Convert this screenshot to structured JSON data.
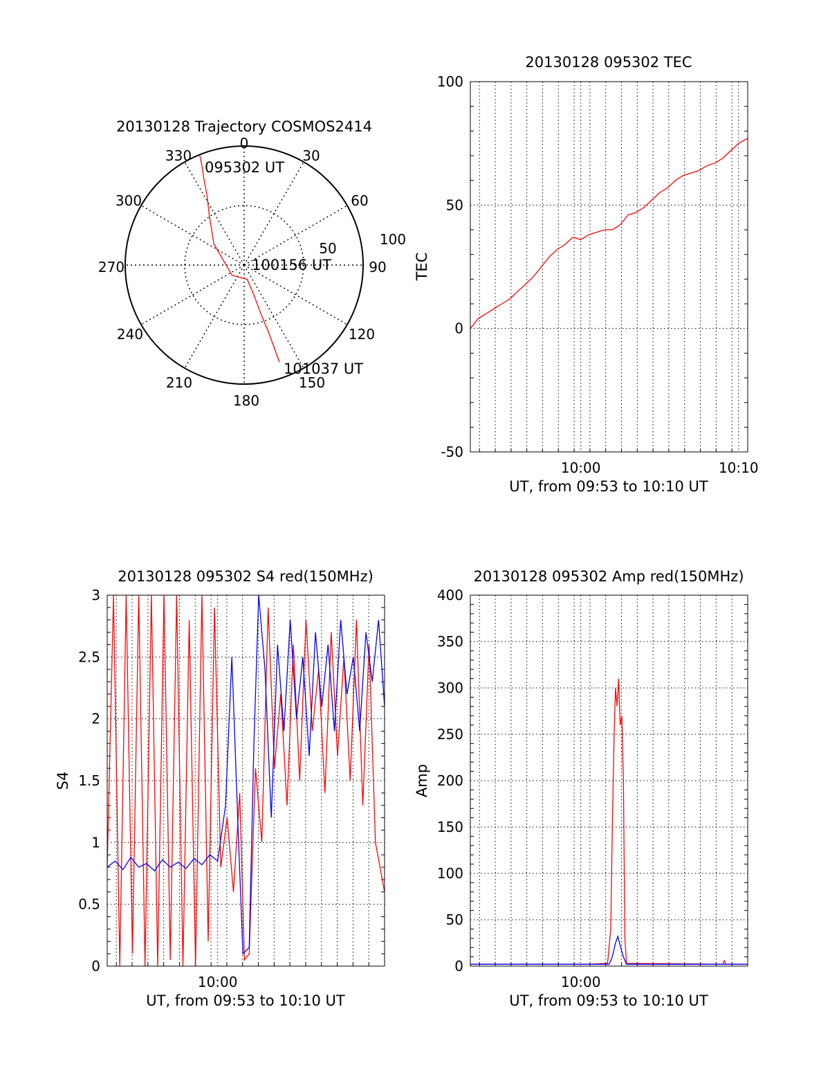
{
  "chart_data": [
    {
      "type": "polar",
      "title": "20130128 Trajectory COSMOS2414",
      "angle_labels": [
        "0",
        "30",
        "60",
        "90",
        "120",
        "150",
        "180",
        "210",
        "240",
        "270",
        "300",
        "330"
      ],
      "radial_labels": [
        "50",
        "100"
      ],
      "annotations": {
        "start": "095302 UT",
        "mid": "100156 UT",
        "end": "101037 UT"
      },
      "trajectory": [
        {
          "az": 338,
          "el": 0
        },
        {
          "az": 337,
          "el": 8
        },
        {
          "az": 335,
          "el": 18
        },
        {
          "az": 332,
          "el": 30
        },
        {
          "az": 325,
          "el": 44
        },
        {
          "az": 305,
          "el": 62
        },
        {
          "az": 230,
          "el": 78
        },
        {
          "az": 168,
          "el": 79
        },
        {
          "az": 162,
          "el": 66
        },
        {
          "az": 161,
          "el": 50
        },
        {
          "az": 160,
          "el": 36
        },
        {
          "az": 160,
          "el": 24
        },
        {
          "az": 160,
          "el": 12
        }
      ],
      "series_color": "#ff0000"
    },
    {
      "type": "line",
      "title": "20130128 095302 TEC",
      "xlabel": "UT, from 09:53 to 10:10 UT",
      "ylabel": "TEC",
      "xlim": [
        0,
        17.58
      ],
      "ylim": [
        -50,
        100
      ],
      "x_ticks": [
        {
          "at": 7,
          "label": "10:00"
        },
        {
          "at": 17,
          "label": "10:10"
        }
      ],
      "y_ticks": [
        "-50",
        "0",
        "50",
        "100"
      ],
      "grid": true,
      "series": [
        {
          "color": "#ff0000",
          "points": [
            [
              0,
              0
            ],
            [
              0.5,
              4
            ],
            [
              1,
              6
            ],
            [
              1.5,
              8
            ],
            [
              2,
              10
            ],
            [
              2.5,
              12
            ],
            [
              3,
              15
            ],
            [
              3.5,
              18
            ],
            [
              4,
              21
            ],
            [
              4.5,
              25
            ],
            [
              5,
              29
            ],
            [
              5.5,
              32
            ],
            [
              6,
              34
            ],
            [
              6.5,
              37
            ],
            [
              7,
              36
            ],
            [
              7.5,
              38
            ],
            [
              8,
              39
            ],
            [
              8.5,
              40
            ],
            [
              9,
              40
            ],
            [
              9.5,
              42
            ],
            [
              10,
              46
            ],
            [
              10.5,
              47
            ],
            [
              11,
              49
            ],
            [
              11.5,
              52
            ],
            [
              12,
              55
            ],
            [
              12.5,
              57
            ],
            [
              13,
              60
            ],
            [
              13.5,
              62
            ],
            [
              14,
              63
            ],
            [
              14.5,
              64
            ],
            [
              15,
              66
            ],
            [
              15.5,
              67
            ],
            [
              16,
              69
            ],
            [
              16.5,
              72
            ],
            [
              17,
              75
            ],
            [
              17.58,
              77
            ]
          ]
        }
      ]
    },
    {
      "type": "line",
      "title": "20130128 095302 S4 red(150MHz)",
      "xlabel": "UT, from 09:53 to 10:10 UT",
      "ylabel": "S4",
      "xlim": [
        0,
        17.58
      ],
      "ylim": [
        0,
        3
      ],
      "x_ticks": [
        {
          "at": 7,
          "label": "10:00"
        }
      ],
      "y_ticks": [
        "0",
        "0.5",
        "1",
        "1.5",
        "2",
        "2.5",
        "3"
      ],
      "grid": true,
      "series": [
        {
          "color": "#ff0000",
          "points": [
            [
              0,
              0.8
            ],
            [
              0.4,
              3
            ],
            [
              0.8,
              0
            ],
            [
              1.2,
              3
            ],
            [
              1.6,
              0.1
            ],
            [
              2,
              3
            ],
            [
              2.4,
              0
            ],
            [
              2.8,
              3
            ],
            [
              3.2,
              0
            ],
            [
              3.6,
              3
            ],
            [
              4,
              0.05
            ],
            [
              4.4,
              3
            ],
            [
              4.8,
              0
            ],
            [
              5.2,
              2.8
            ],
            [
              5.6,
              0
            ],
            [
              6,
              3
            ],
            [
              6.4,
              0.2
            ],
            [
              6.8,
              2.9
            ],
            [
              7.2,
              0.8
            ],
            [
              7.6,
              1.2
            ],
            [
              8,
              0.6
            ],
            [
              8.4,
              1.4
            ],
            [
              8.7,
              0.05
            ],
            [
              9,
              0.1
            ],
            [
              9.4,
              1.6
            ],
            [
              9.8,
              1.0
            ],
            [
              10.2,
              2.9
            ],
            [
              10.6,
              1.6
            ],
            [
              11,
              2.2
            ],
            [
              11.4,
              1.3
            ],
            [
              11.8,
              2.6
            ],
            [
              12.2,
              1.5
            ],
            [
              12.6,
              2.8
            ],
            [
              13,
              1.9
            ],
            [
              13.4,
              2.4
            ],
            [
              13.8,
              1.4
            ],
            [
              14.2,
              2.7
            ],
            [
              14.6,
              1.7
            ],
            [
              15,
              2.5
            ],
            [
              15.4,
              1.5
            ],
            [
              15.8,
              2.8
            ],
            [
              16.2,
              1.3
            ],
            [
              16.6,
              2.6
            ],
            [
              17,
              1.0
            ],
            [
              17.58,
              0.6
            ]
          ]
        },
        {
          "color": "#0000ff",
          "points": [
            [
              0,
              0.8
            ],
            [
              0.5,
              0.85
            ],
            [
              1,
              0.78
            ],
            [
              1.5,
              0.88
            ],
            [
              2,
              0.8
            ],
            [
              2.5,
              0.83
            ],
            [
              3,
              0.77
            ],
            [
              3.5,
              0.86
            ],
            [
              4,
              0.8
            ],
            [
              4.5,
              0.84
            ],
            [
              5,
              0.79
            ],
            [
              5.5,
              0.87
            ],
            [
              6,
              0.82
            ],
            [
              6.5,
              0.9
            ],
            [
              7,
              0.85
            ],
            [
              7.5,
              1.3
            ],
            [
              7.9,
              2.5
            ],
            [
              8.3,
              1.1
            ],
            [
              8.6,
              0.1
            ],
            [
              9,
              0.15
            ],
            [
              9.3,
              1.8
            ],
            [
              9.6,
              3
            ],
            [
              10,
              2.4
            ],
            [
              10.4,
              1.2
            ],
            [
              10.8,
              2.6
            ],
            [
              11.2,
              1.9
            ],
            [
              11.6,
              2.8
            ],
            [
              12,
              2.0
            ],
            [
              12.4,
              2.5
            ],
            [
              12.8,
              1.7
            ],
            [
              13.2,
              2.7
            ],
            [
              13.6,
              2.1
            ],
            [
              14,
              2.6
            ],
            [
              14.4,
              1.9
            ],
            [
              14.8,
              2.8
            ],
            [
              15.2,
              2.2
            ],
            [
              15.6,
              2.5
            ],
            [
              16,
              1.9
            ],
            [
              16.4,
              2.7
            ],
            [
              16.8,
              2.3
            ],
            [
              17.2,
              2.8
            ],
            [
              17.58,
              2.1
            ]
          ]
        }
      ]
    },
    {
      "type": "line",
      "title": "20130128 095302 Amp red(150MHz)",
      "xlabel": "UT, from 09:53 to 10:10 UT",
      "ylabel": "Amp",
      "xlim": [
        0,
        17.58
      ],
      "ylim": [
        0,
        400
      ],
      "x_ticks": [
        {
          "at": 7,
          "label": "10:00"
        }
      ],
      "y_ticks": [
        "0",
        "50",
        "100",
        "150",
        "200",
        "250",
        "300",
        "350",
        "400"
      ],
      "grid": true,
      "series": [
        {
          "color": "#ff0000",
          "points": [
            [
              0,
              2
            ],
            [
              7.5,
              2
            ],
            [
              8.7,
              3
            ],
            [
              8.9,
              40
            ],
            [
              9.0,
              150
            ],
            [
              9.1,
              240
            ],
            [
              9.2,
              300
            ],
            [
              9.3,
              280
            ],
            [
              9.4,
              310
            ],
            [
              9.5,
              260
            ],
            [
              9.6,
              270
            ],
            [
              9.7,
              200
            ],
            [
              9.8,
              30
            ],
            [
              9.9,
              3
            ],
            [
              16,
              2
            ],
            [
              16.1,
              6
            ],
            [
              16.2,
              2
            ],
            [
              17.58,
              2
            ]
          ]
        },
        {
          "color": "#0000ff",
          "points": [
            [
              0,
              2
            ],
            [
              8.8,
              2
            ],
            [
              9.0,
              10
            ],
            [
              9.2,
              25
            ],
            [
              9.35,
              32
            ],
            [
              9.5,
              22
            ],
            [
              9.7,
              10
            ],
            [
              9.9,
              2
            ],
            [
              17.58,
              2
            ]
          ]
        }
      ]
    }
  ]
}
